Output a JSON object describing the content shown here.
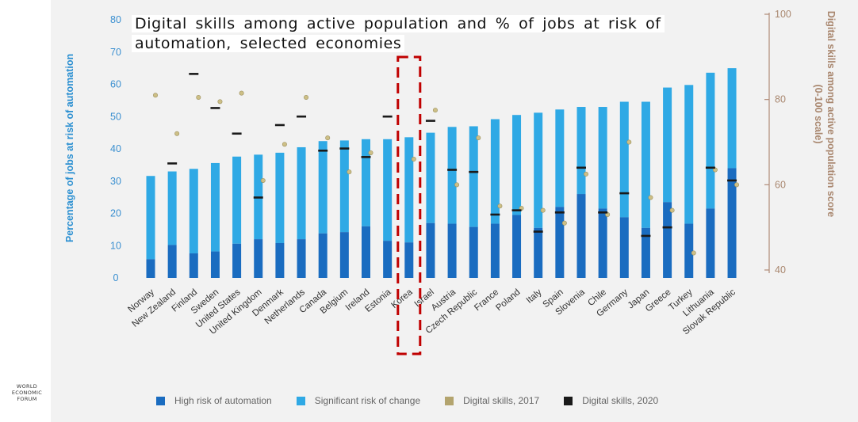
{
  "organization": {
    "logo_lines": [
      "WORLD",
      "ECONOMIC",
      "FORUM"
    ]
  },
  "chart_data": {
    "type": "bar",
    "stacked": true,
    "title": "Digital skills among active population and % of jobs at risk of automation, selected economies",
    "ylabel": "Percentage of jobs at risk of automation",
    "y2label": "Digital skills among active population score (0-100 scale)",
    "ylim": [
      0,
      80
    ],
    "y2lim": [
      40,
      100
    ],
    "yticks": [
      0,
      10,
      20,
      30,
      40,
      50,
      60,
      70,
      80
    ],
    "y2ticks": [
      40,
      60,
      80,
      100
    ],
    "categories": [
      "Norway",
      "New Zealand",
      "Finland",
      "Sweden",
      "United States",
      "United Kingdom",
      "Denmark",
      "Netherlands",
      "Canada",
      "Belgium",
      "Ireland",
      "Estonia",
      "Korea",
      "Israel",
      "Austria",
      "Czech Republic",
      "France",
      "Poland",
      "Italy",
      "Spain",
      "Slovenia",
      "Chile",
      "Germany",
      "Japan",
      "Greece",
      "Turkey",
      "Lithuania",
      "Slovak Republic"
    ],
    "highlighted_category": "Korea",
    "series": [
      {
        "name": "High risk of automation",
        "color": "#1a6cc0",
        "values": [
          5.8,
          10.2,
          7.6,
          8.2,
          10.6,
          12,
          10.8,
          12,
          13.8,
          14.2,
          16,
          11.5,
          11,
          17,
          16.8,
          15.8,
          16.8,
          19.5,
          15.5,
          22,
          26,
          21.5,
          18.8,
          15.5,
          23.5,
          16.8,
          21.5,
          34
        ]
      },
      {
        "name": "Significant risk of change",
        "color": "#2fa9e5",
        "values": [
          25.8,
          22.8,
          26.2,
          27.4,
          27,
          26.2,
          28,
          28.5,
          28.6,
          28.4,
          27,
          31.5,
          32.6,
          28,
          30,
          31.2,
          32.4,
          31,
          35.7,
          30.2,
          27,
          31.5,
          35.8,
          39.1,
          35.5,
          43,
          42.1,
          31
        ]
      },
      {
        "name": "Digital skills, 2017",
        "color": "#b3a46e",
        "scale": "y2",
        "values": [
          81,
          72,
          80.5,
          79.5,
          81.5,
          61,
          69.5,
          80.5,
          71,
          63,
          67.5,
          null,
          66,
          77.5,
          60,
          71,
          55,
          54.5,
          54,
          51,
          62.5,
          53,
          70,
          57,
          54,
          44,
          63.5,
          60
        ]
      },
      {
        "name": "Digital skills, 2020",
        "color": "#1a1a1a",
        "scale": "y2",
        "values": [
          null,
          65,
          86,
          78,
          72,
          57,
          74,
          76,
          68,
          68.5,
          66.5,
          76,
          null,
          75,
          63.5,
          63,
          53,
          54,
          49,
          53.5,
          64,
          53.5,
          58,
          48,
          50,
          null,
          64,
          61
        ]
      }
    ],
    "legend": {
      "position": "bottom"
    },
    "grid": false
  }
}
